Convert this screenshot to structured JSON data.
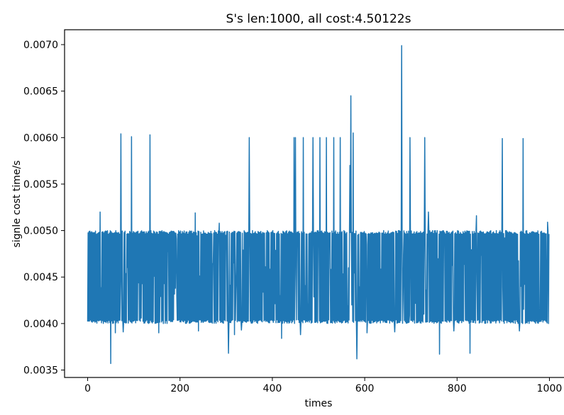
{
  "chart_data": {
    "type": "line",
    "title": "S's len:1000, all cost:4.50122s",
    "xlabel": "times",
    "ylabel": "signle cost time/s",
    "xlim": [
      -50,
      1050
    ],
    "ylim": [
      0.00342,
      0.00716
    ],
    "x_ticks": [
      0,
      200,
      400,
      600,
      800,
      1000
    ],
    "x_tick_labels": [
      "0",
      "200",
      "400",
      "600",
      "800",
      "1000"
    ],
    "y_ticks": [
      0.0035,
      0.004,
      0.0045,
      0.005,
      0.0055,
      0.006,
      0.0065,
      0.007
    ],
    "y_tick_labels": [
      "0.0035",
      "0.0040",
      "0.0045",
      "0.0050",
      "0.0055",
      "0.0060",
      "0.0065",
      "0.0070"
    ],
    "grid": false,
    "series": [
      {
        "color": "#1f77b4",
        "n_points": 1000,
        "base_low": 0.004,
        "base_high": 0.005,
        "spikes_high": [
          [
            27,
            0.0052
          ],
          [
            72,
            0.00604
          ],
          [
            95,
            0.00601
          ],
          [
            135,
            0.00603
          ],
          [
            233,
            0.00519
          ],
          [
            285,
            0.00508
          ],
          [
            350,
            0.006
          ],
          [
            447,
            0.006
          ],
          [
            450,
            0.006
          ],
          [
            467,
            0.006
          ],
          [
            488,
            0.006
          ],
          [
            503,
            0.006
          ],
          [
            517,
            0.006
          ],
          [
            533,
            0.006
          ],
          [
            547,
            0.006
          ],
          [
            568,
            0.0057
          ],
          [
            570,
            0.00645
          ],
          [
            575,
            0.00605
          ],
          [
            680,
            0.00699
          ],
          [
            698,
            0.006
          ],
          [
            730,
            0.006
          ],
          [
            738,
            0.0052
          ],
          [
            842,
            0.00516
          ],
          [
            898,
            0.00599
          ],
          [
            943,
            0.00599
          ],
          [
            996,
            0.00509
          ]
        ],
        "spikes_low": [
          [
            50,
            0.00357
          ],
          [
            60,
            0.0039
          ],
          [
            77,
            0.00391
          ],
          [
            154,
            0.0039
          ],
          [
            240,
            0.00392
          ],
          [
            305,
            0.00368
          ],
          [
            318,
            0.00388
          ],
          [
            333,
            0.00393
          ],
          [
            420,
            0.00384
          ],
          [
            461,
            0.00388
          ],
          [
            583,
            0.00362
          ],
          [
            605,
            0.0039
          ],
          [
            665,
            0.00391
          ],
          [
            762,
            0.00367
          ],
          [
            793,
            0.00392
          ],
          [
            828,
            0.00368
          ],
          [
            935,
            0.00392
          ],
          [
            1000,
            0.00394
          ]
        ],
        "gaps": [
          [
            73,
            0.0046
          ],
          [
            300,
            0.0048
          ],
          [
            350,
            0.0043
          ],
          [
            565,
            0.0046
          ],
          [
            572,
            0.0042
          ],
          [
            680,
            0.0042
          ],
          [
            938,
            0.0044
          ]
        ]
      }
    ]
  }
}
